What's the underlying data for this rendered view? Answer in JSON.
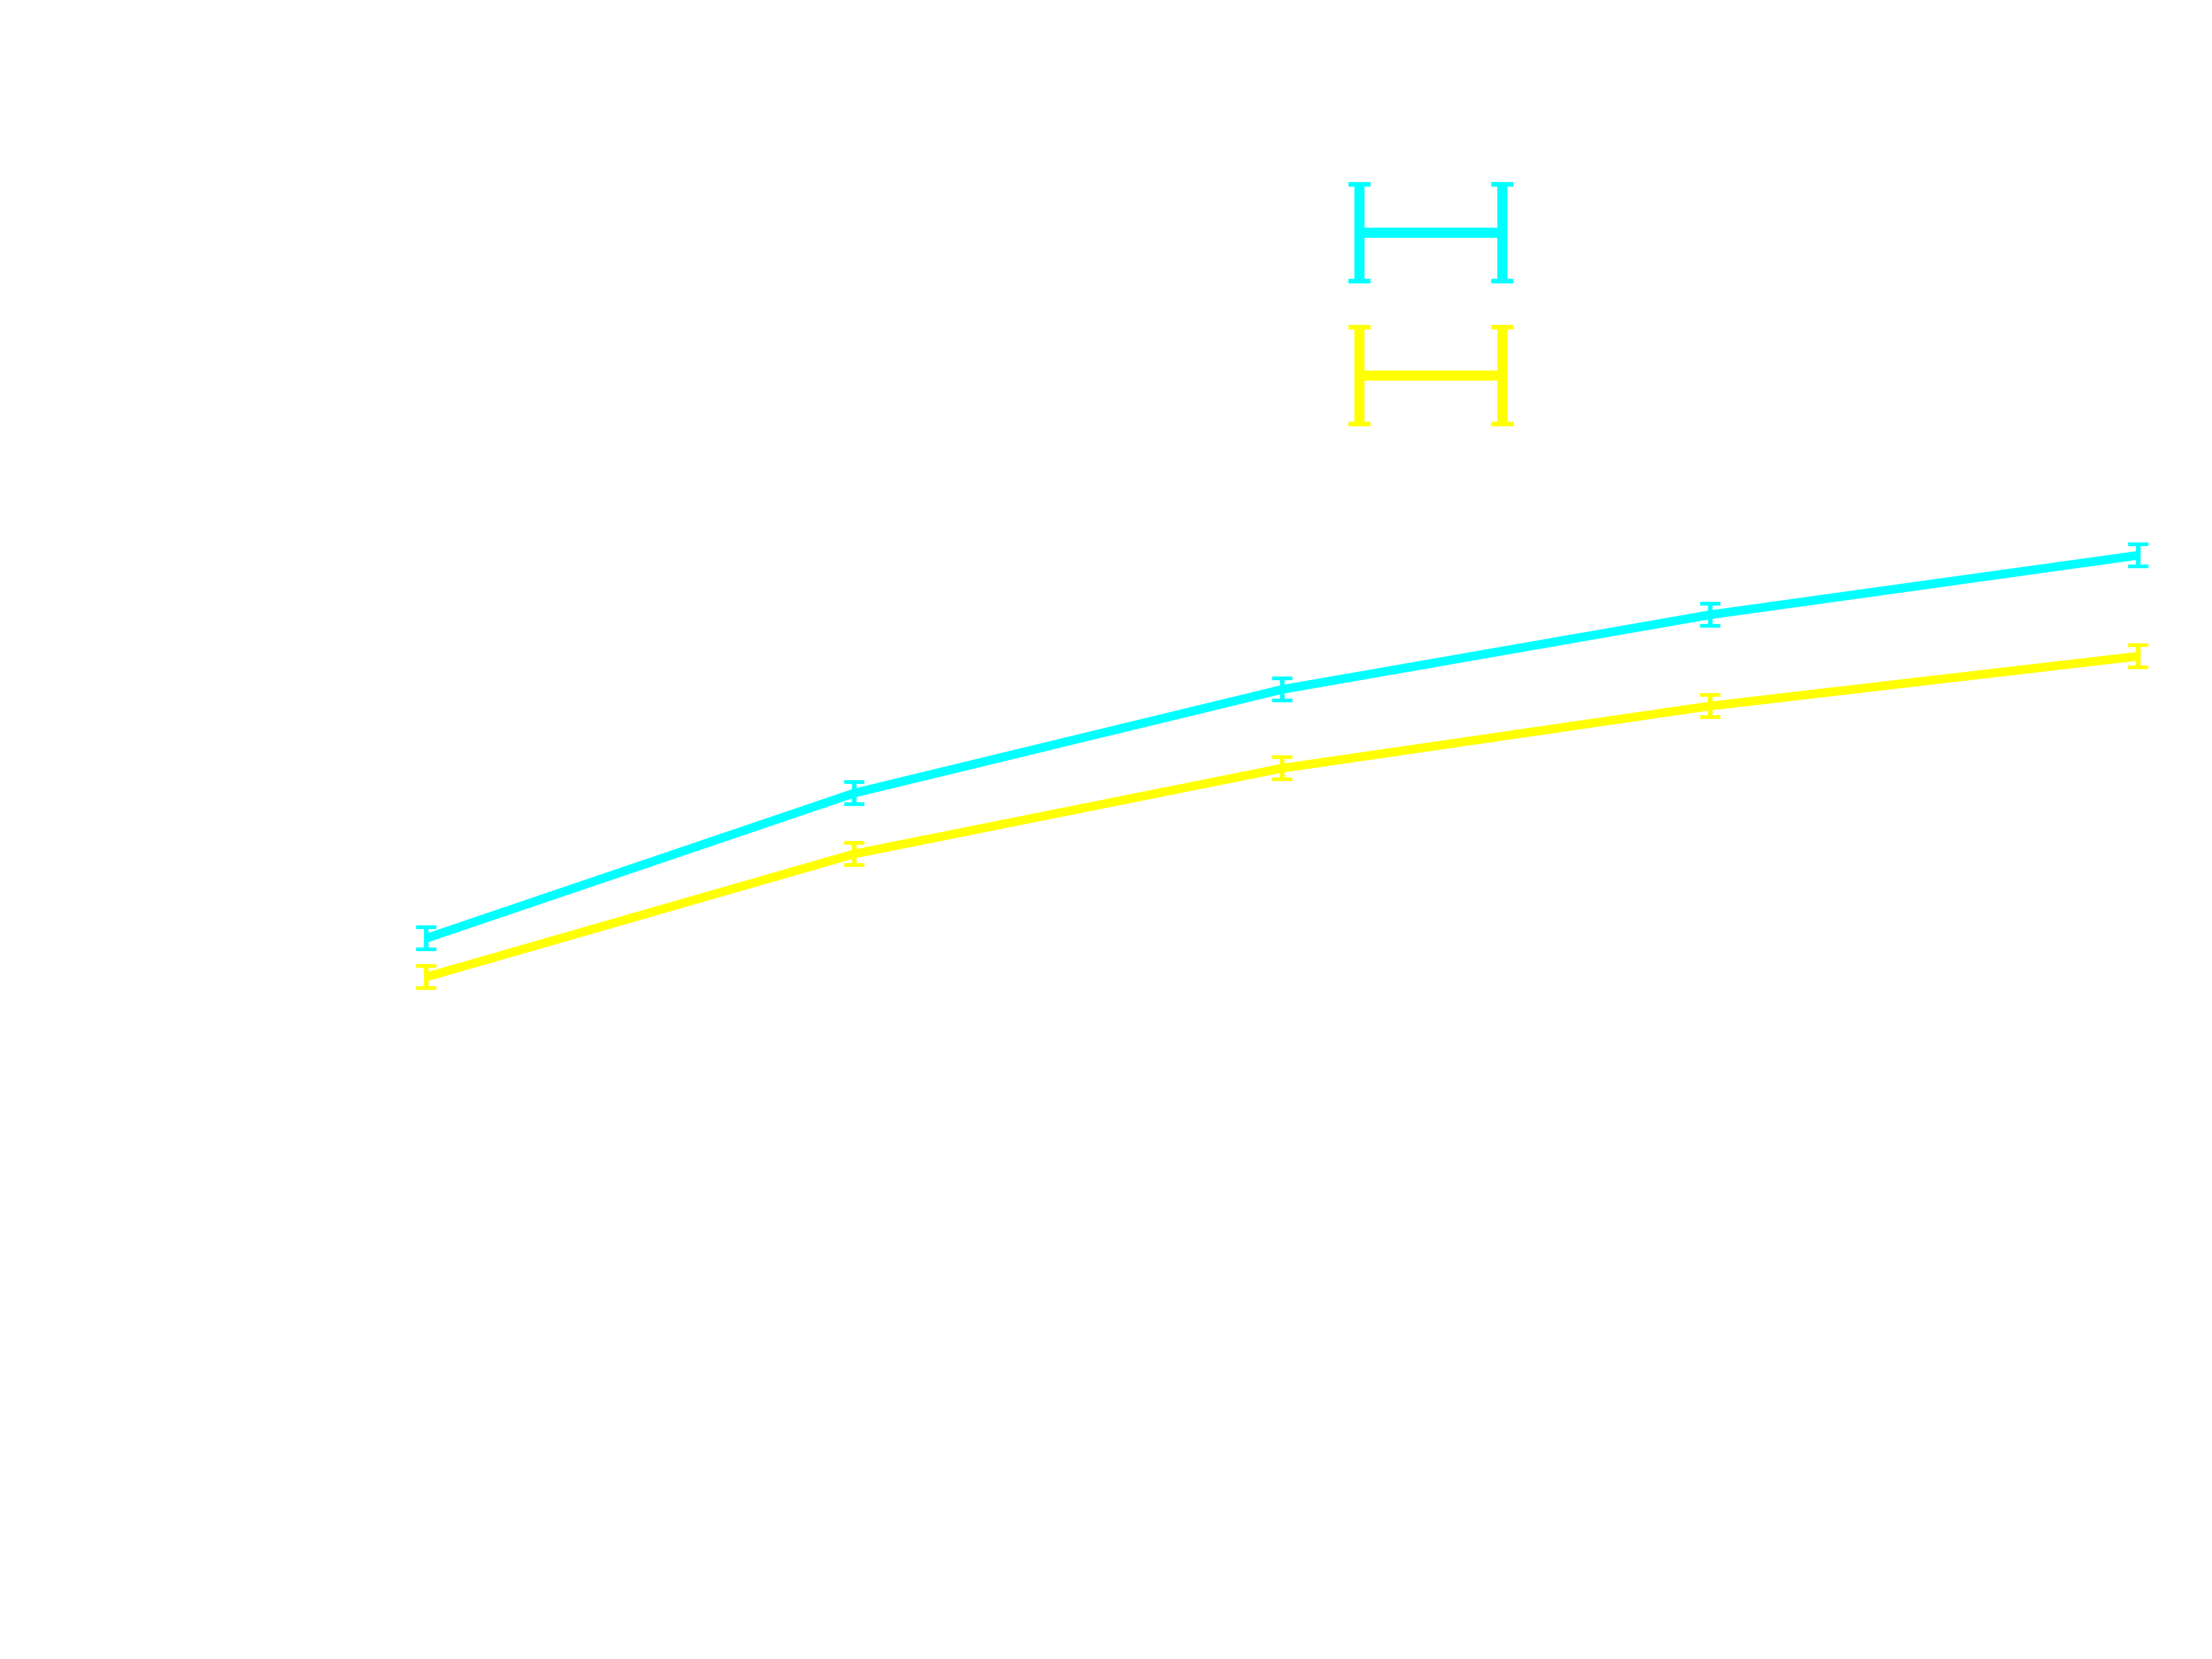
{
  "chart_data": {
    "type": "line",
    "title": "",
    "xlabel": "",
    "ylabel": "",
    "x": [
      1,
      2,
      3,
      4,
      5
    ],
    "xlim": [
      1,
      5
    ],
    "ylim": [
      0,
      1
    ],
    "grid": false,
    "legend": "top-center",
    "series": [
      {
        "color": "#00ffff",
        "values": [
          0.398,
          0.503,
          0.578,
          0.632,
          0.675
        ],
        "errors": [
          0.008,
          0.008,
          0.008,
          0.008,
          0.008
        ]
      },
      {
        "color": "#ffff00",
        "values": [
          0.37,
          0.459,
          0.521,
          0.566,
          0.602
        ],
        "errors": [
          0.008,
          0.008,
          0.008,
          0.008,
          0.008
        ]
      }
    ]
  }
}
